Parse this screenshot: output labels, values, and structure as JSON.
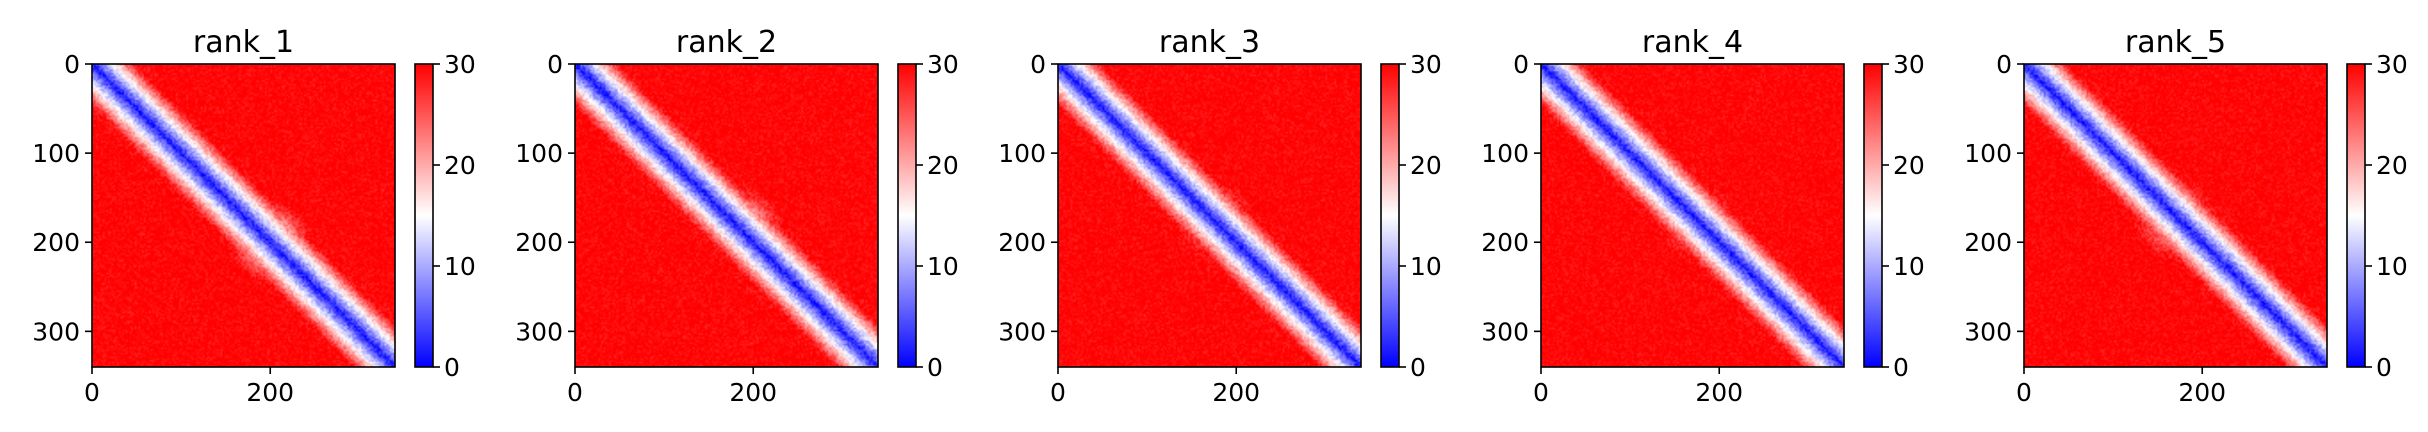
{
  "chart_data": [
    {
      "type": "heatmap",
      "title": "rank_1",
      "n": 340,
      "xlim": [
        0,
        340
      ],
      "ylim": [
        340,
        0
      ],
      "xticks": [
        0,
        200
      ],
      "yticks": [
        0,
        100,
        200,
        300
      ],
      "colorbar": {
        "min": 0,
        "max": 30,
        "ticks": [
          0,
          10,
          20,
          30
        ],
        "colormap": [
          "#0000ff",
          "#ffffff",
          "#ff0000"
        ]
      },
      "blobs": [
        {
          "x": 200,
          "y": 200,
          "r": 48,
          "value": 6
        },
        {
          "x": 180,
          "y": 175,
          "r": 28,
          "value": 9
        }
      ]
    },
    {
      "type": "heatmap",
      "title": "rank_2",
      "n": 340,
      "xlim": [
        0,
        340
      ],
      "ylim": [
        340,
        0
      ],
      "xticks": [
        0,
        200
      ],
      "yticks": [
        0,
        100,
        200,
        300
      ],
      "colorbar": {
        "min": 0,
        "max": 30,
        "ticks": [
          0,
          10,
          20,
          30
        ],
        "colormap": [
          "#0000ff",
          "#ffffff",
          "#ff0000"
        ]
      },
      "blobs": [
        {
          "x": 190,
          "y": 180,
          "r": 45,
          "value": 14
        },
        {
          "x": 160,
          "y": 165,
          "r": 18,
          "value": 9
        }
      ]
    },
    {
      "type": "heatmap",
      "title": "rank_3",
      "n": 340,
      "xlim": [
        0,
        340
      ],
      "ylim": [
        340,
        0
      ],
      "xticks": [
        0,
        200
      ],
      "yticks": [
        0,
        100,
        200,
        300
      ],
      "colorbar": {
        "min": 0,
        "max": 30,
        "ticks": [
          0,
          10,
          20,
          30
        ],
        "colormap": [
          "#0000ff",
          "#ffffff",
          "#ff0000"
        ]
      },
      "blobs": [
        {
          "x": 175,
          "y": 175,
          "r": 45,
          "value": 15
        },
        {
          "x": 160,
          "y": 160,
          "r": 12,
          "value": 4
        }
      ]
    },
    {
      "type": "heatmap",
      "title": "rank_4",
      "n": 340,
      "xlim": [
        0,
        340
      ],
      "ylim": [
        340,
        0
      ],
      "xticks": [
        0,
        200
      ],
      "yticks": [
        0,
        100,
        200,
        300
      ],
      "colorbar": {
        "min": 0,
        "max": 30,
        "ticks": [
          0,
          10,
          20,
          30
        ],
        "colormap": [
          "#0000ff",
          "#ffffff",
          "#ff0000"
        ]
      },
      "blobs": [
        {
          "x": 175,
          "y": 175,
          "r": 45,
          "value": 15
        },
        {
          "x": 160,
          "y": 160,
          "r": 12,
          "value": 3
        }
      ]
    },
    {
      "type": "heatmap",
      "title": "rank_5",
      "n": 340,
      "xlim": [
        0,
        340
      ],
      "ylim": [
        340,
        0
      ],
      "xticks": [
        0,
        200
      ],
      "yticks": [
        0,
        100,
        200,
        300
      ],
      "colorbar": {
        "min": 0,
        "max": 30,
        "ticks": [
          0,
          10,
          20,
          30
        ],
        "colormap": [
          "#0000ff",
          "#ffffff",
          "#ff0000"
        ]
      },
      "blobs": [
        {
          "x": 170,
          "y": 175,
          "r": 50,
          "value": 15
        },
        {
          "x": 205,
          "y": 205,
          "r": 16,
          "value": 6
        }
      ]
    }
  ]
}
